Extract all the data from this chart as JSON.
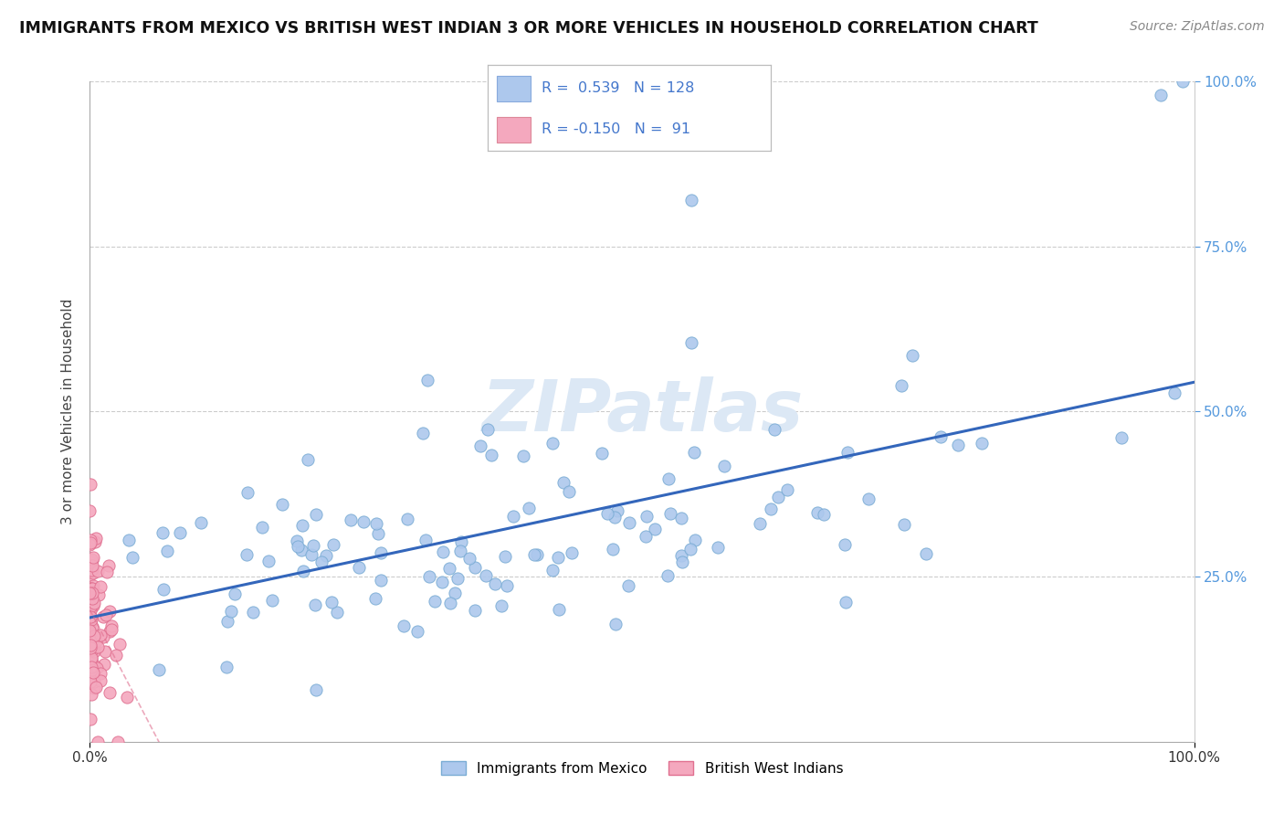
{
  "title": "IMMIGRANTS FROM MEXICO VS BRITISH WEST INDIAN 3 OR MORE VEHICLES IN HOUSEHOLD CORRELATION CHART",
  "source": "Source: ZipAtlas.com",
  "ylabel": "3 or more Vehicles in Household",
  "xlim": [
    0,
    1.0
  ],
  "ylim": [
    0,
    1.0
  ],
  "mexico_color": "#adc8ed",
  "mexico_edge": "#7aacd4",
  "bwi_color": "#f4a8be",
  "bwi_edge": "#e07090",
  "mexico_R": 0.539,
  "mexico_N": 128,
  "bwi_R": -0.15,
  "bwi_N": 91,
  "legend_box_color_mexico": "#adc8ed",
  "legend_box_color_bwi": "#f4a8be",
  "legend_text_color": "#4477cc",
  "watermark_color": "#dce8f5",
  "background_color": "#ffffff",
  "grid_color": "#cccccc",
  "title_fontsize": 12.5,
  "mexico_line_color": "#3366bb",
  "bwi_line_color": "#e07090",
  "right_axis_color": "#5599dd"
}
